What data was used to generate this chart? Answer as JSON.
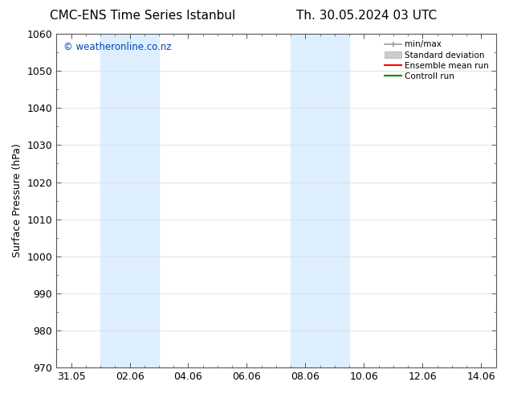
{
  "title_left": "CMC-ENS Time Series Istanbul",
  "title_right": "Th. 30.05.2024 03 UTC",
  "ylabel": "Surface Pressure (hPa)",
  "ylim": [
    970,
    1060
  ],
  "yticks": [
    970,
    980,
    990,
    1000,
    1010,
    1020,
    1030,
    1040,
    1050,
    1060
  ],
  "xtick_labels": [
    "31.05",
    "02.06",
    "04.06",
    "06.06",
    "08.06",
    "10.06",
    "12.06",
    "14.06"
  ],
  "xtick_positions": [
    0,
    2,
    4,
    6,
    8,
    10,
    12,
    14
  ],
  "xlim": [
    -0.5,
    14.5
  ],
  "shaded_bands": [
    {
      "x_start": 1,
      "x_end": 3,
      "color": "#ddeeff"
    },
    {
      "x_start": 7.5,
      "x_end": 9.5,
      "color": "#ddeeff"
    }
  ],
  "watermark_text": "© weatheronline.co.nz",
  "watermark_color": "#0044bb",
  "legend_items": [
    {
      "label": "min/max",
      "color": "#999999",
      "style": "minmax"
    },
    {
      "label": "Standard deviation",
      "color": "#cccccc",
      "style": "bar"
    },
    {
      "label": "Ensemble mean run",
      "color": "#ff0000",
      "style": "line"
    },
    {
      "label": "Controll run",
      "color": "#008800",
      "style": "line"
    }
  ],
  "bg_color": "#ffffff",
  "plot_bg_color": "#ffffff",
  "grid_color": "#dddddd",
  "tick_color": "#000000",
  "font_color": "#000000",
  "title_fontsize": 11,
  "axis_fontsize": 9,
  "label_fontsize": 9
}
